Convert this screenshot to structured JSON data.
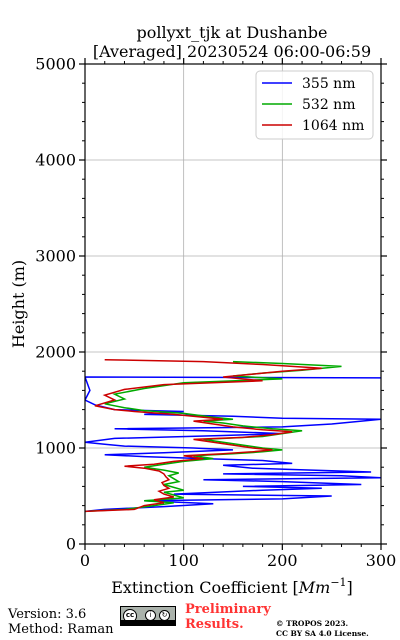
{
  "chart_data": {
    "type": "line",
    "title_line1": "pollyxt_tjk at Dushanbe",
    "title_line2": "[Averaged] 20230524 06:00-06:59",
    "xlabel_prefix": "Extinction Coefficient ",
    "xlabel_unit": "Mm",
    "xlabel_exp": "−1",
    "ylabel": "Height (m)",
    "xlim": [
      0,
      300
    ],
    "ylim": [
      0,
      5000
    ],
    "xticks": [
      "0",
      "100",
      "200",
      "300"
    ],
    "yticks": [
      "0",
      "1000",
      "2000",
      "3000",
      "4000",
      "5000"
    ],
    "grid": true,
    "legend_position": "top-right",
    "series": [
      {
        "name": "355 nm",
        "color": "#0000ff",
        "points": [
          [
            0,
            340
          ],
          [
            20,
            360
          ],
          [
            80,
            390
          ],
          [
            130,
            420
          ],
          [
            60,
            450
          ],
          [
            200,
            470
          ],
          [
            250,
            500
          ],
          [
            90,
            520
          ],
          [
            180,
            560
          ],
          [
            240,
            580
          ],
          [
            160,
            600
          ],
          [
            280,
            620
          ],
          [
            200,
            650
          ],
          [
            120,
            670
          ],
          [
            300,
            690
          ],
          [
            260,
            710
          ],
          [
            140,
            730
          ],
          [
            290,
            750
          ],
          [
            230,
            770
          ],
          [
            170,
            790
          ],
          [
            140,
            820
          ],
          [
            210,
            840
          ],
          [
            180,
            870
          ],
          [
            120,
            890
          ],
          [
            60,
            910
          ],
          [
            20,
            930
          ],
          [
            80,
            950
          ],
          [
            150,
            980
          ],
          [
            110,
            1000
          ],
          [
            40,
            1020
          ],
          [
            20,
            1040
          ],
          [
            0,
            1060
          ],
          [
            30,
            1100
          ],
          [
            140,
            1130
          ],
          [
            200,
            1150
          ],
          [
            120,
            1180
          ],
          [
            30,
            1200
          ],
          [
            200,
            1220
          ],
          [
            250,
            1250
          ],
          [
            300,
            1300
          ],
          [
            200,
            1310
          ],
          [
            150,
            1330
          ],
          [
            60,
            1350
          ],
          [
            100,
            1380
          ],
          [
            30,
            1400
          ],
          [
            10,
            1450
          ],
          [
            0,
            1500
          ],
          [
            5,
            1600
          ],
          [
            0,
            1740
          ],
          [
            300,
            1730
          ]
        ]
      },
      {
        "name": "532 nm",
        "color": "#00aa00",
        "points": [
          [
            0,
            340
          ],
          [
            40,
            360
          ],
          [
            70,
            400
          ],
          [
            90,
            430
          ],
          [
            60,
            450
          ],
          [
            100,
            480
          ],
          [
            90,
            510
          ],
          [
            80,
            540
          ],
          [
            100,
            560
          ],
          [
            90,
            590
          ],
          [
            80,
            620
          ],
          [
            95,
            650
          ],
          [
            90,
            680
          ],
          [
            85,
            710
          ],
          [
            95,
            740
          ],
          [
            80,
            770
          ],
          [
            60,
            800
          ],
          [
            80,
            830
          ],
          [
            100,
            860
          ],
          [
            130,
            890
          ],
          [
            110,
            920
          ],
          [
            150,
            940
          ],
          [
            180,
            960
          ],
          [
            200,
            980
          ],
          [
            180,
            1000
          ],
          [
            160,
            1030
          ],
          [
            140,
            1060
          ],
          [
            120,
            1090
          ],
          [
            180,
            1120
          ],
          [
            200,
            1150
          ],
          [
            220,
            1180
          ],
          [
            190,
            1200
          ],
          [
            160,
            1230
          ],
          [
            140,
            1260
          ],
          [
            120,
            1280
          ],
          [
            150,
            1300
          ],
          [
            130,
            1320
          ],
          [
            100,
            1360
          ],
          [
            60,
            1390
          ],
          [
            40,
            1420
          ],
          [
            20,
            1460
          ],
          [
            40,
            1510
          ],
          [
            30,
            1560
          ],
          [
            60,
            1620
          ],
          [
            100,
            1680
          ],
          [
            200,
            1720
          ],
          [
            150,
            1750
          ],
          [
            180,
            1780
          ],
          [
            220,
            1810
          ],
          [
            260,
            1850
          ],
          [
            200,
            1880
          ],
          [
            150,
            1900
          ]
        ]
      },
      {
        "name": "1064 nm",
        "color": "#cc0000",
        "points": [
          [
            0,
            340
          ],
          [
            50,
            360
          ],
          [
            60,
            400
          ],
          [
            80,
            430
          ],
          [
            70,
            460
          ],
          [
            90,
            490
          ],
          [
            80,
            520
          ],
          [
            75,
            550
          ],
          [
            85,
            580
          ],
          [
            80,
            610
          ],
          [
            78,
            640
          ],
          [
            85,
            670
          ],
          [
            82,
            700
          ],
          [
            80,
            730
          ],
          [
            75,
            760
          ],
          [
            60,
            790
          ],
          [
            40,
            810
          ],
          [
            70,
            830
          ],
          [
            90,
            860
          ],
          [
            120,
            890
          ],
          [
            100,
            920
          ],
          [
            140,
            940
          ],
          [
            170,
            960
          ],
          [
            190,
            980
          ],
          [
            170,
            1000
          ],
          [
            150,
            1030
          ],
          [
            130,
            1060
          ],
          [
            110,
            1090
          ],
          [
            160,
            1110
          ],
          [
            190,
            1140
          ],
          [
            210,
            1170
          ],
          [
            180,
            1190
          ],
          [
            150,
            1220
          ],
          [
            130,
            1250
          ],
          [
            110,
            1280
          ],
          [
            140,
            1300
          ],
          [
            120,
            1320
          ],
          [
            90,
            1350
          ],
          [
            50,
            1380
          ],
          [
            30,
            1400
          ],
          [
            10,
            1440
          ],
          [
            30,
            1500
          ],
          [
            20,
            1550
          ],
          [
            40,
            1610
          ],
          [
            80,
            1660
          ],
          [
            180,
            1700
          ],
          [
            140,
            1740
          ],
          [
            170,
            1770
          ],
          [
            200,
            1800
          ],
          [
            240,
            1830
          ],
          [
            180,
            1870
          ],
          [
            120,
            1900
          ],
          [
            20,
            1920
          ]
        ]
      }
    ]
  },
  "footer": {
    "version": "Version: 3.6",
    "method": "Method: Raman",
    "license_badge_text": "cc",
    "preliminary_line1": "Preliminary",
    "preliminary_line2": "Results.",
    "copyright_line1": "© TROPOS 2023.",
    "copyright_line2": "CC BY SA 4.0 License."
  }
}
